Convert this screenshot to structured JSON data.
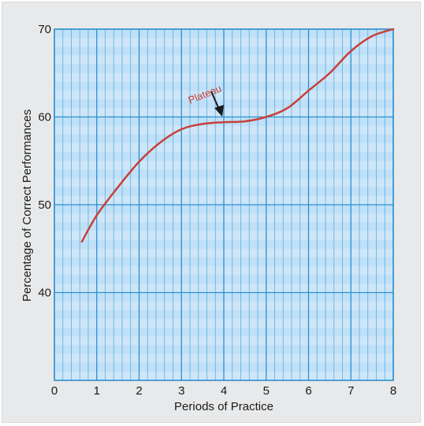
{
  "chart_data": {
    "type": "line",
    "title": "",
    "xlabel": "Periods of Practice",
    "ylabel": "Percentage of Correct Performances",
    "xlim": [
      0,
      8
    ],
    "ylim": [
      30,
      70
    ],
    "x_ticks": [
      "0",
      "1",
      "2",
      "3",
      "4",
      "5",
      "6",
      "7",
      "8"
    ],
    "y_ticks": [
      "40",
      "50",
      "60",
      "70"
    ],
    "grid": true,
    "series": [
      {
        "x": [
          0.65,
          1.0,
          1.5,
          2.0,
          2.5,
          3.0,
          3.5,
          4.0,
          4.5,
          5.0,
          5.5,
          6.0,
          6.5,
          7.0,
          7.5,
          8.0
        ],
        "values": [
          45.8,
          48.8,
          52.0,
          54.9,
          57.1,
          58.6,
          59.2,
          59.4,
          59.5,
          60.0,
          61.0,
          63.0,
          65.0,
          67.5,
          69.2,
          70.0
        ]
      }
    ],
    "annotations": [
      {
        "text": "Plateau",
        "x": 4.0,
        "y": 59.5
      }
    ],
    "colors": {
      "line": "#c8403a",
      "annotation": "#c8403a",
      "arrow": "#1a1a1a",
      "plot_bg": "#cfe6f8",
      "plot_bg_band": "#bfe0f7",
      "grid_major": "#2a90d0",
      "grid_minor": "#5aaee0",
      "figure_bg": "#e8e9ea"
    }
  }
}
